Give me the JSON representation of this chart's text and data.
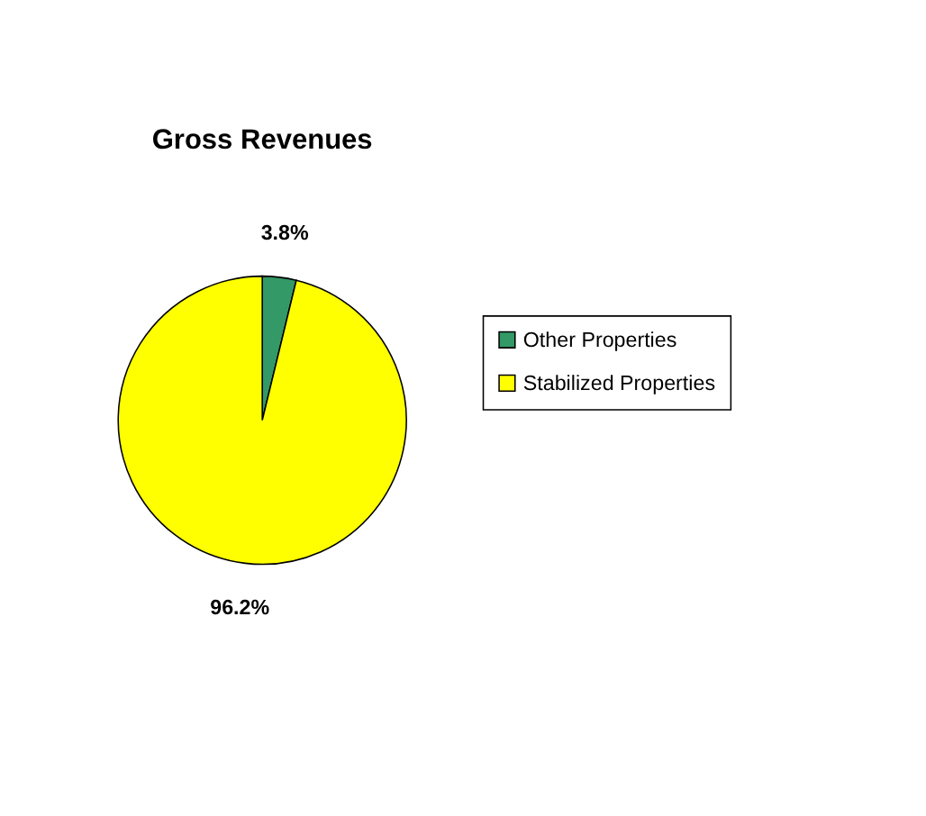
{
  "chart_data": {
    "type": "pie",
    "title": "Gross Revenues",
    "categories": [
      "Other Properties",
      "Stabilized Properties"
    ],
    "values": [
      3.8,
      96.2
    ],
    "colors": [
      "#339966",
      "#ffff00"
    ],
    "value_labels": [
      "3.8%",
      "96.2%"
    ],
    "legend": "right"
  }
}
